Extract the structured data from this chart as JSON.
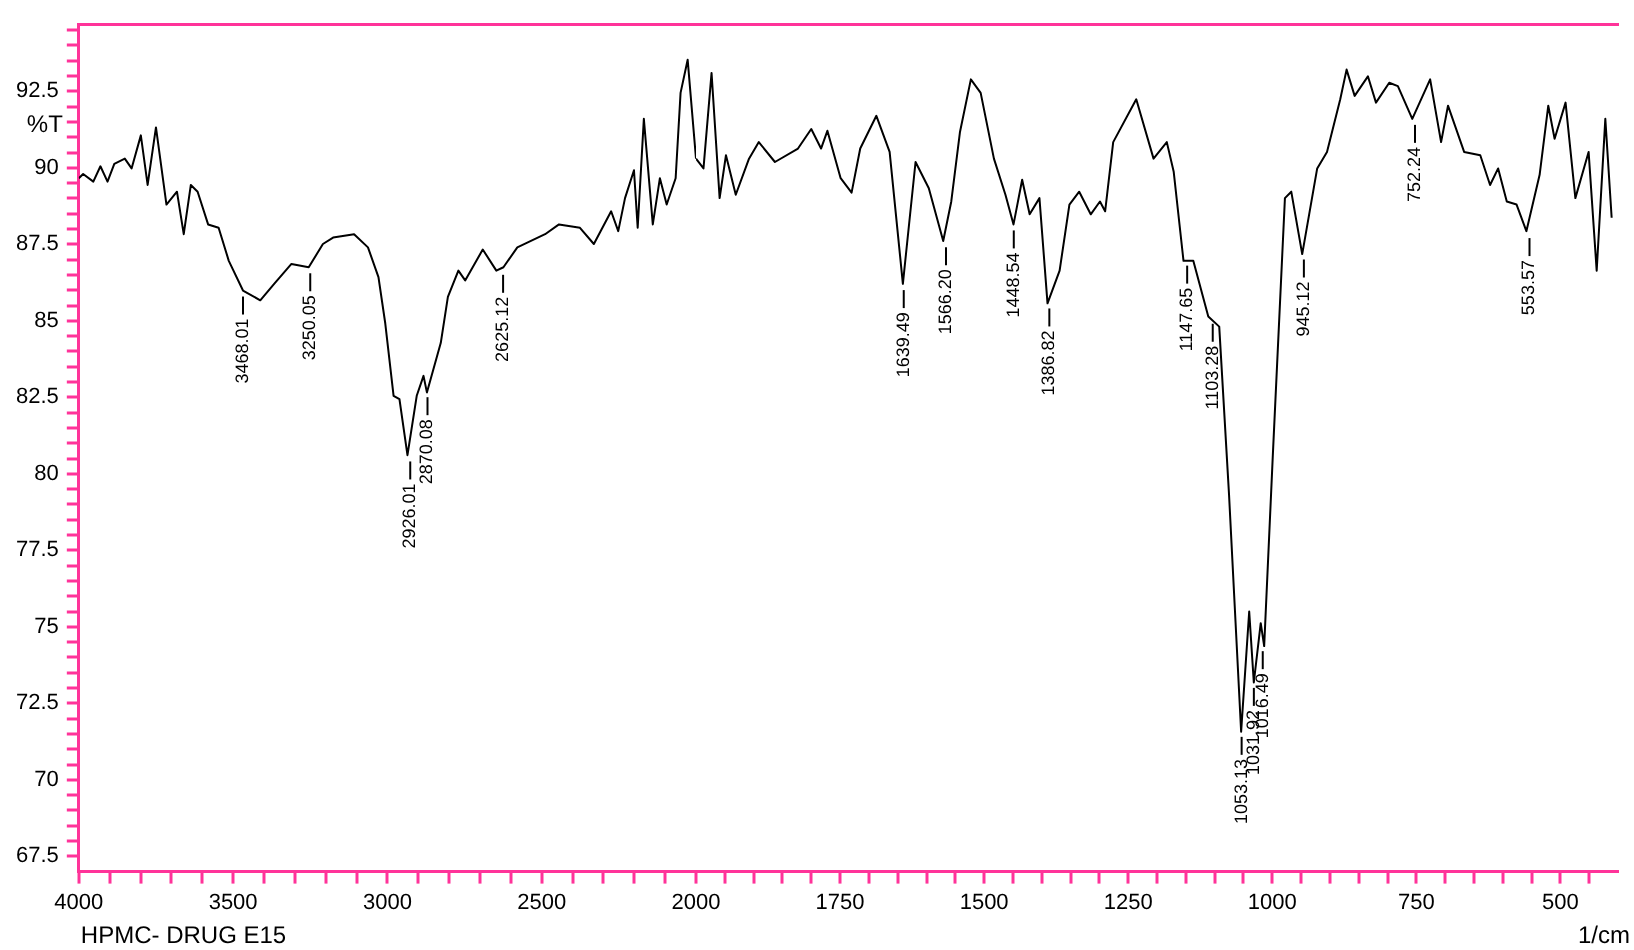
{
  "chart_data": [
    {
      "type": "line",
      "ylabel": "%T",
      "marker": "none",
      "line_style": "solid",
      "annotations": [
        "HPMC- DRUG E15",
        {
          "text": "3468.01",
          "x": 3468.01,
          "y": 85.99
        },
        {
          "text": "3250.05",
          "x": 3250.05,
          "y": 86.75
        },
        {
          "text": "2926.01",
          "x": 2926.01,
          "y": 80.6
        },
        {
          "text": "2870.08",
          "x": 2870.08,
          "y": 82.7
        },
        {
          "text": "2625.12",
          "x": 2625.12,
          "y": 86.7
        }
      ],
      "x": [
        4000,
        3986,
        3953,
        3930,
        3907,
        3885,
        3851,
        3829,
        3799,
        3777,
        3750,
        3716,
        3682,
        3660,
        3637,
        3615,
        3581,
        3547,
        3514,
        3468,
        3412,
        3367,
        3311,
        3255,
        3209,
        3176,
        3108,
        3063,
        3029,
        3007,
        2980,
        2961,
        2935,
        2905,
        2883,
        2872,
        2827,
        2804,
        2770,
        2748,
        2691,
        2647,
        2624,
        2579,
        2489,
        2444,
        2376,
        2331,
        2275,
        2252,
        2230,
        2201,
        2189,
        2169,
        2140,
        2117,
        2095,
        2066,
        2050,
        2027,
        2000
      ],
      "series": [
        {
          "color": "#000000",
          "values": [
            89.66,
            89.8,
            89.55,
            90.05,
            89.55,
            90.13,
            90.3,
            89.98,
            91.06,
            89.44,
            91.32,
            88.8,
            89.22,
            87.83,
            89.44,
            89.22,
            88.15,
            88.04,
            86.96,
            85.99,
            85.67,
            86.21,
            86.86,
            86.75,
            87.51,
            87.72,
            87.83,
            87.4,
            86.43,
            84.92,
            82.55,
            82.44,
            80.61,
            82.55,
            83.2,
            82.66,
            84.28,
            85.78,
            86.64,
            86.32,
            87.33,
            86.64,
            86.75,
            87.4,
            87.83,
            88.15,
            88.04,
            87.51,
            88.58,
            87.93,
            89.01,
            89.92,
            88.04,
            91.6,
            88.15,
            89.66,
            88.8,
            89.66,
            92.45,
            93.53,
            90.3
          ]
        }
      ],
      "xlim": [
        4000,
        2000
      ],
      "ylim": [
        67,
        94.7
      ],
      "xticks": [
        4000,
        {
          "value": 3900,
          "label": null
        },
        {
          "value": 3800,
          "label": null
        },
        {
          "value": 3700,
          "label": null
        },
        {
          "value": 3600,
          "label": null
        },
        3500,
        {
          "value": 3400,
          "label": null
        },
        {
          "value": 3300,
          "label": null
        },
        {
          "value": 3200,
          "label": null
        },
        {
          "value": 3100,
          "label": null
        },
        3000,
        {
          "value": 2900,
          "label": null
        },
        {
          "value": 2800,
          "label": null
        },
        {
          "value": 2700,
          "label": null
        },
        {
          "value": 2600,
          "label": null
        },
        2500,
        {
          "value": 2400,
          "label": null
        },
        {
          "value": 2300,
          "label": null
        },
        {
          "value": 2200,
          "label": null
        },
        {
          "value": 2100,
          "label": null
        },
        2000
      ],
      "yticks": [
        67.5,
        {
          "value": 68,
          "label": null
        },
        {
          "value": 68.5,
          "label": null
        },
        {
          "value": 69,
          "label": null
        },
        {
          "value": 69.5,
          "label": null
        },
        70,
        {
          "value": 70.5,
          "label": null
        },
        {
          "value": 71,
          "label": null
        },
        {
          "value": 71.5,
          "label": null
        },
        {
          "value": 72,
          "label": null
        },
        72.5,
        {
          "value": 73,
          "label": null
        },
        {
          "value": 73.5,
          "label": null
        },
        {
          "value": 74,
          "label": null
        },
        {
          "value": 74.5,
          "label": null
        },
        75,
        {
          "value": 75.5,
          "label": null
        },
        {
          "value": 76,
          "label": null
        },
        {
          "value": 76.5,
          "label": null
        },
        {
          "value": 77,
          "label": null
        },
        77.5,
        {
          "value": 78,
          "label": null
        },
        {
          "value": 78.5,
          "label": null
        },
        {
          "value": 79,
          "label": null
        },
        {
          "value": 79.5,
          "label": null
        },
        80,
        {
          "value": 80.5,
          "label": null
        },
        {
          "value": 81,
          "label": null
        },
        {
          "value": 81.5,
          "label": null
        },
        {
          "value": 82,
          "label": null
        },
        82.5,
        {
          "value": 83,
          "label": null
        },
        {
          "value": 83.5,
          "label": null
        },
        {
          "value": 84,
          "label": null
        },
        {
          "value": 84.5,
          "label": null
        },
        85,
        {
          "value": 85.5,
          "label": null
        },
        {
          "value": 86,
          "label": null
        },
        {
          "value": 86.5,
          "label": null
        },
        {
          "value": 87,
          "label": null
        },
        87.5,
        {
          "value": 88,
          "label": null
        },
        {
          "value": 88.5,
          "label": null
        },
        {
          "value": 89,
          "label": null
        },
        {
          "value": 89.5,
          "label": null
        },
        90,
        {
          "value": 90.5,
          "label": null
        },
        {
          "value": 91,
          "label": null
        },
        {
          "value": 91.5,
          "label": null
        },
        {
          "value": 92,
          "label": null
        },
        92.5,
        {
          "value": 93,
          "label": null
        },
        {
          "value": 93.5,
          "label": null
        },
        {
          "value": 94,
          "label": null
        },
        {
          "value": 94.5,
          "label": null
        }
      ]
    },
    {
      "type": "line",
      "xlabel": "1/cm",
      "marker": "none",
      "line_style": "solid",
      "tick_labels": "x",
      "annotations": [
        {
          "text": "1639.49",
          "x": 1639.49,
          "y": 86.2
        },
        {
          "text": "1566.20",
          "x": 1566.2,
          "y": 87.6
        },
        {
          "text": "1448.54",
          "x": 1448.54,
          "y": 88.15
        },
        {
          "text": "1386.82",
          "x": 1386.82,
          "y": 85.6
        },
        {
          "text": "1147.65",
          "x": 1147.65,
          "y": 87.0
        },
        {
          "text": "1103.28",
          "x": 1103.28,
          "y": 85.1
        },
        {
          "text": "1053.13",
          "x": 1053.13,
          "y": 71.6
        },
        {
          "text": "1031.92",
          "x": 1031.92,
          "y": 73.2
        },
        {
          "text": "1016.49",
          "x": 1016.49,
          "y": 74.4
        },
        {
          "text": "945.12",
          "x": 945.12,
          "y": 87.2
        },
        {
          "text": "752.24",
          "x": 752.24,
          "y": 91.6
        },
        {
          "text": "553.57",
          "x": 553.57,
          "y": 87.9
        }
      ],
      "x": [
        2000,
        1987,
        1973,
        1959,
        1948,
        1931,
        1908,
        1891,
        1863,
        1823,
        1800,
        1783,
        1772,
        1749,
        1730,
        1715,
        1687,
        1664,
        1641,
        1619,
        1596,
        1571,
        1557,
        1542,
        1523,
        1506,
        1483,
        1463,
        1449,
        1434,
        1421,
        1404,
        1390,
        1369,
        1352,
        1335,
        1315,
        1299,
        1290,
        1276,
        1236,
        1206,
        1183,
        1171,
        1154,
        1137,
        1111,
        1092,
        1075,
        1054,
        1040,
        1032,
        1020,
        1014,
        999,
        978,
        967,
        948,
        922,
        905,
        882,
        871,
        857,
        834,
        820,
        797,
        782,
        757,
        726,
        707,
        695,
        667,
        639,
        622,
        608,
        593,
        576,
        559,
        536,
        521,
        510,
        491,
        474,
        451,
        437,
        422,
        411
      ],
      "series": [
        {
          "color": "#000000",
          "values": [
            90.3,
            89.98,
            93.1,
            89.01,
            90.41,
            89.12,
            90.3,
            90.84,
            90.19,
            90.63,
            91.27,
            90.63,
            91.21,
            89.66,
            89.19,
            90.63,
            91.7,
            90.52,
            86.21,
            90.19,
            89.33,
            87.61,
            88.9,
            91.16,
            92.89,
            92.45,
            90.3,
            89.12,
            88.15,
            89.61,
            88.48,
            89.01,
            85.57,
            86.64,
            88.8,
            89.22,
            88.48,
            88.9,
            88.58,
            90.84,
            92.24,
            90.3,
            90.84,
            89.87,
            86.96,
            86.96,
            85.14,
            84.81,
            79.32,
            71.57,
            75.5,
            73.18,
            75.12,
            74.37,
            80.61,
            89.01,
            89.22,
            87.18,
            89.98,
            90.52,
            92.24,
            93.21,
            92.35,
            92.99,
            92.13,
            92.78,
            92.67,
            91.6,
            92.89,
            90.84,
            92.03,
            90.52,
            90.41,
            89.44,
            89.98,
            88.9,
            88.8,
            87.93,
            89.77,
            92.03,
            90.95,
            92.13,
            89.01,
            90.52,
            86.64,
            91.6,
            88.37
          ]
        }
      ],
      "xlim": [
        2000,
        400
      ],
      "ylim": [
        67,
        94.7
      ],
      "xticks": [
        {
          "value": 1950,
          "label": null
        },
        {
          "value": 1900,
          "label": null
        },
        {
          "value": 1850,
          "label": null
        },
        {
          "value": 1800,
          "label": null
        },
        1750,
        {
          "value": 1700,
          "label": null
        },
        {
          "value": 1650,
          "label": null
        },
        {
          "value": 1600,
          "label": null
        },
        {
          "value": 1550,
          "label": null
        },
        1500,
        {
          "value": 1450,
          "label": null
        },
        {
          "value": 1400,
          "label": null
        },
        {
          "value": 1350,
          "label": null
        },
        {
          "value": 1300,
          "label": null
        },
        1250,
        {
          "value": 1200,
          "label": null
        },
        {
          "value": 1150,
          "label": null
        },
        {
          "value": 1100,
          "label": null
        },
        {
          "value": 1050,
          "label": null
        },
        1000,
        {
          "value": 950,
          "label": null
        },
        {
          "value": 900,
          "label": null
        },
        {
          "value": 850,
          "label": null
        },
        {
          "value": 800,
          "label": null
        },
        750,
        {
          "value": 700,
          "label": null
        },
        {
          "value": 650,
          "label": null
        },
        {
          "value": 600,
          "label": null
        },
        {
          "value": 550,
          "label": null
        },
        500,
        {
          "value": 450,
          "label": null
        }
      ]
    }
  ]
}
